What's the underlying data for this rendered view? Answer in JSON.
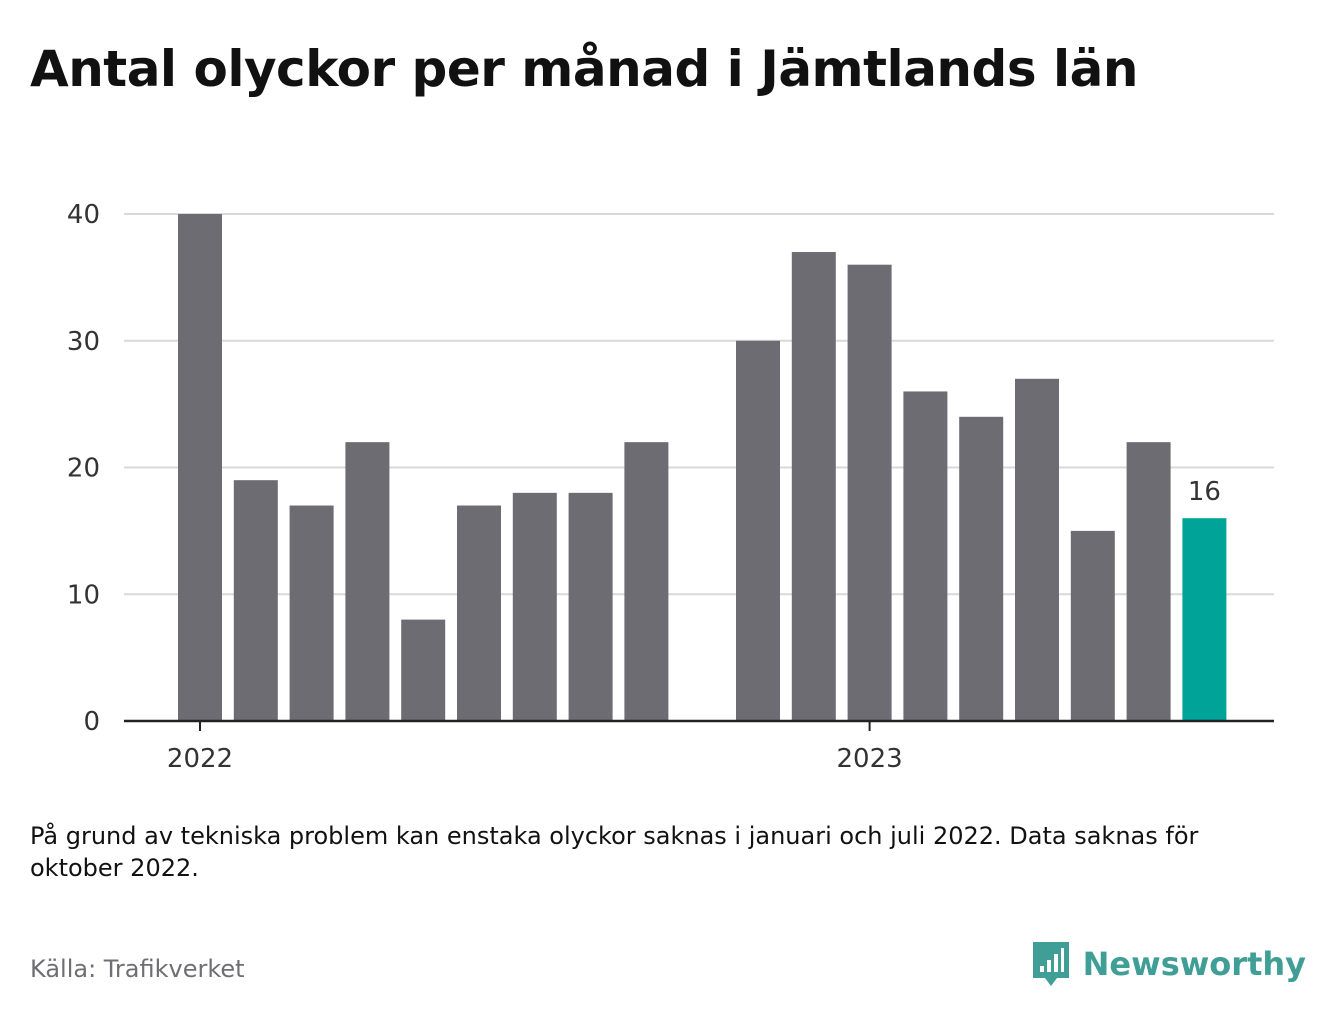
{
  "title": "Antal olyckor per månad i Jämtlands län",
  "note": "På grund av tekniska problem kan enstaka olyckor saknas i januari och juli 2022. Data saknas för oktober 2022.",
  "source": "Källa: Trafikverket",
  "brand": {
    "name": "Newsworthy",
    "icon": "newsworthy-logo-icon"
  },
  "colors": {
    "bar": "#6d6c72",
    "highlight": "#00a398",
    "grid": "#d9d9d9",
    "axis": "#222222"
  },
  "chart_data": {
    "type": "bar",
    "ylim": [
      0,
      40
    ],
    "yticks": [
      0,
      10,
      20,
      30,
      40
    ],
    "grid": true,
    "xtick_labels": [
      {
        "label": "2022",
        "at_index": 0
      },
      {
        "label": "2023",
        "at_index": 12
      }
    ],
    "bars": [
      {
        "month": "2022-01",
        "value": 40
      },
      {
        "month": "2022-02",
        "value": 19
      },
      {
        "month": "2022-03",
        "value": 17
      },
      {
        "month": "2022-04",
        "value": 22
      },
      {
        "month": "2022-05",
        "value": 8
      },
      {
        "month": "2022-06",
        "value": 17
      },
      {
        "month": "2022-07",
        "value": 18
      },
      {
        "month": "2022-08",
        "value": 18
      },
      {
        "month": "2022-09",
        "value": 22
      },
      {
        "month": "2022-10",
        "value": null
      },
      {
        "month": "2022-11",
        "value": 30
      },
      {
        "month": "2022-12",
        "value": 37
      },
      {
        "month": "2023-01",
        "value": 36
      },
      {
        "month": "2023-02",
        "value": 26
      },
      {
        "month": "2023-03",
        "value": 24
      },
      {
        "month": "2023-04",
        "value": 27
      },
      {
        "month": "2023-05",
        "value": 15
      },
      {
        "month": "2023-06",
        "value": 22
      },
      {
        "month": "2023-07",
        "value": 16,
        "highlight": true,
        "label": "16"
      }
    ]
  }
}
